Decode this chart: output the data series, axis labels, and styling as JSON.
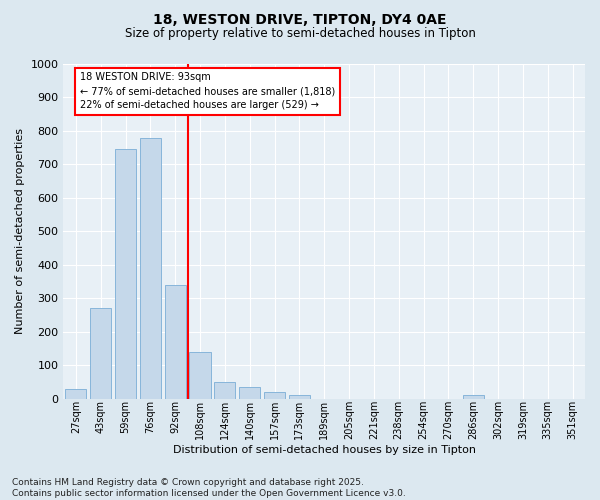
{
  "title1": "18, WESTON DRIVE, TIPTON, DY4 0AE",
  "title2": "Size of property relative to semi-detached houses in Tipton",
  "xlabel": "Distribution of semi-detached houses by size in Tipton",
  "ylabel": "Number of semi-detached properties",
  "categories": [
    "27sqm",
    "43sqm",
    "59sqm",
    "76sqm",
    "92sqm",
    "108sqm",
    "124sqm",
    "140sqm",
    "157sqm",
    "173sqm",
    "189sqm",
    "205sqm",
    "221sqm",
    "238sqm",
    "254sqm",
    "270sqm",
    "286sqm",
    "302sqm",
    "319sqm",
    "335sqm",
    "351sqm"
  ],
  "values": [
    28,
    270,
    745,
    780,
    340,
    140,
    50,
    35,
    20,
    10,
    0,
    0,
    0,
    0,
    0,
    0,
    10,
    0,
    0,
    0,
    0
  ],
  "bar_color": "#c5d8ea",
  "bar_edge_color": "#7aaed6",
  "vline_position": 4.5,
  "vline_color": "red",
  "annotation_title": "18 WESTON DRIVE: 93sqm",
  "annotation_line1": "← 77% of semi-detached houses are smaller (1,818)",
  "annotation_line2": "22% of semi-detached houses are larger (529) →",
  "ylim": [
    0,
    1000
  ],
  "yticks": [
    0,
    100,
    200,
    300,
    400,
    500,
    600,
    700,
    800,
    900,
    1000
  ],
  "footer": "Contains HM Land Registry data © Crown copyright and database right 2025.\nContains public sector information licensed under the Open Government Licence v3.0.",
  "bg_color": "#dce8f0",
  "plot_bg_color": "#e8f0f6"
}
